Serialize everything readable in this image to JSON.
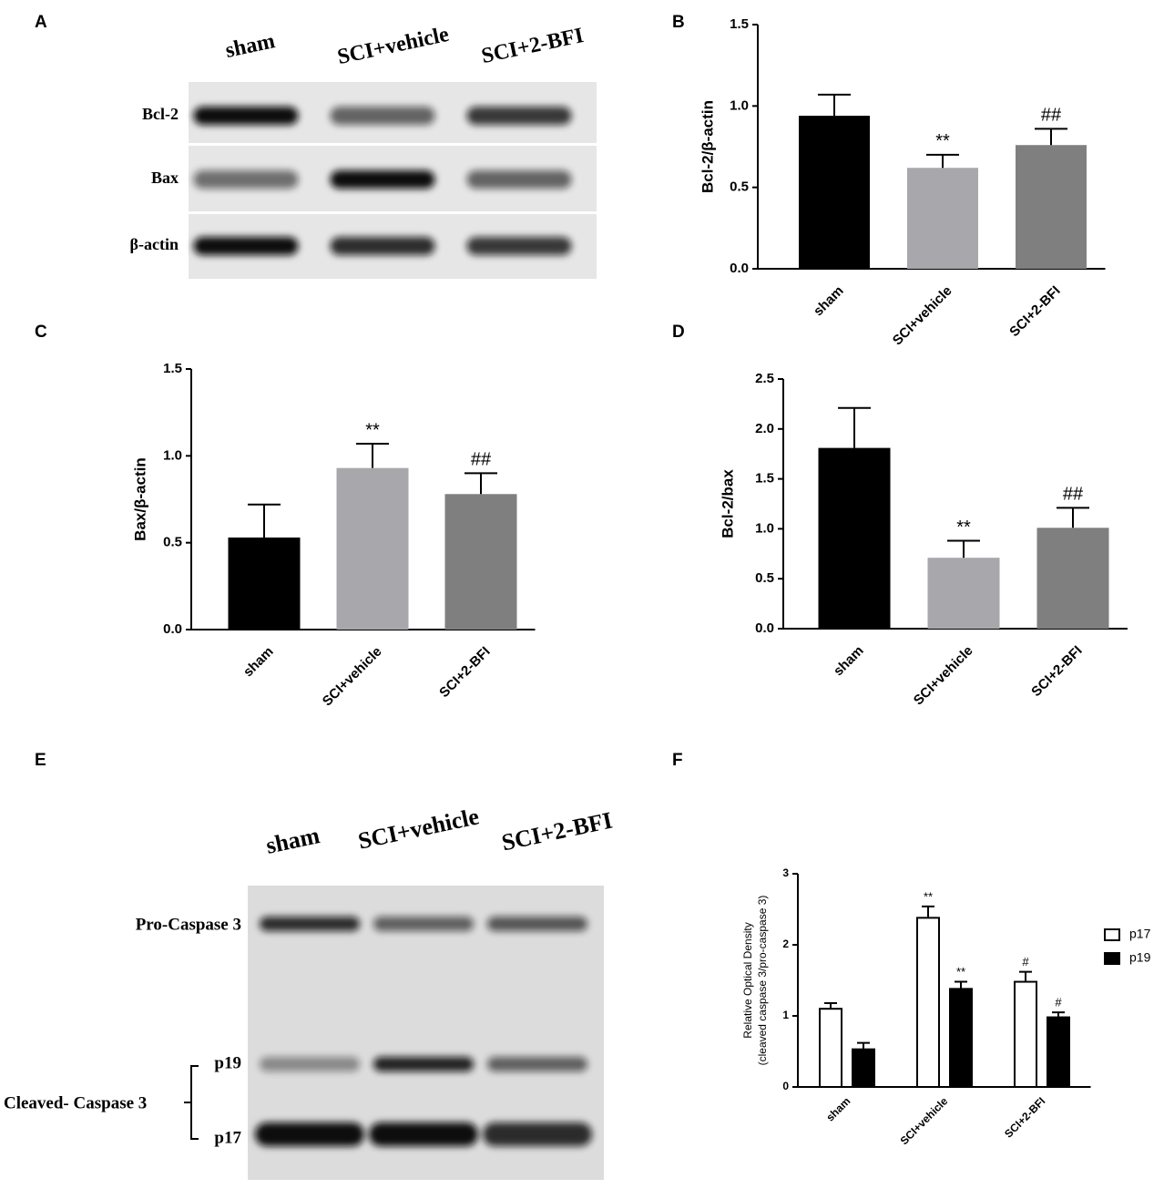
{
  "blots": [
    {
      "panel": "A",
      "lanes": [
        "sham",
        "SCI+vehicle",
        "SCI+2-BFI"
      ],
      "rows": [
        "Bcl-2",
        "Bax",
        "β-actin"
      ]
    },
    {
      "panel": "E",
      "lanes": [
        "sham",
        "SCI+vehicle",
        "SCI+2-BFI"
      ],
      "labels": [
        "Pro-Caspase 3",
        "p19",
        "Cleaved- Caspase 3",
        "p17"
      ]
    }
  ],
  "chart_data": [
    {
      "type": "bar",
      "panel": "B",
      "ylabel": "Bcl-2/β-actin",
      "categories": [
        "sham",
        "SCI+vehicle",
        "SCI+2-BFI"
      ],
      "values": [
        0.94,
        0.62,
        0.76
      ],
      "errors": [
        0.13,
        0.08,
        0.1
      ],
      "annotations": [
        null,
        "**",
        "##"
      ],
      "colors": [
        "#000000",
        "#a7a7ac",
        "#7f7f7f"
      ],
      "ylim": [
        0,
        1.5
      ],
      "yticks": [
        {
          "value": 0,
          "label": "0.0"
        },
        0.5,
        {
          "value": 1,
          "label": "1.0"
        },
        1.5
      ]
    },
    {
      "type": "bar",
      "panel": "C",
      "ylabel": "Bax/β-actin",
      "categories": [
        "sham",
        "SCI+vehicle",
        "SCI+2-BFI"
      ],
      "values": [
        0.53,
        0.93,
        0.78
      ],
      "errors": [
        0.19,
        0.14,
        0.12
      ],
      "annotations": [
        null,
        "**",
        "##"
      ],
      "colors": [
        "#000000",
        "#a7a7ac",
        "#7f7f7f"
      ],
      "ylim": [
        0,
        1.5
      ],
      "yticks": [
        {
          "value": 0,
          "label": "0.0"
        },
        0.5,
        {
          "value": 1,
          "label": "1.0"
        },
        1.5
      ]
    },
    {
      "type": "bar",
      "panel": "D",
      "ylabel": "Bcl-2/bax",
      "categories": [
        "sham",
        "SCI+vehicle",
        "SCI+2-BFI"
      ],
      "values": [
        1.81,
        0.71,
        1.01
      ],
      "errors": [
        0.4,
        0.17,
        0.2
      ],
      "annotations": [
        null,
        "**",
        "##"
      ],
      "colors": [
        "#000000",
        "#a7a7ac",
        "#7f7f7f"
      ],
      "ylim": [
        0,
        2.5
      ],
      "yticks": [
        {
          "value": 0,
          "label": "0.0"
        },
        0.5,
        {
          "value": 1,
          "label": "1.0"
        },
        1.5,
        {
          "value": 2,
          "label": "2.0"
        },
        2.5
      ]
    },
    {
      "type": "grouped-bar",
      "panel": "F",
      "ylabel": [
        "Relative Optical Density",
        "(cleaved caspase 3/pro-caspase 3)"
      ],
      "categories": [
        "sham",
        "SCI+vehicle",
        "SCI+2-BFI"
      ],
      "edgecolor": "#000000",
      "legend": "right",
      "series": [
        {
          "name": "p17",
          "color": "#ffffff",
          "values": [
            1.1,
            2.38,
            1.48
          ],
          "errors": [
            0.08,
            0.16,
            0.14
          ],
          "annotations": [
            null,
            "**",
            "#"
          ]
        },
        {
          "name": "p19",
          "color": "#000000",
          "values": [
            0.53,
            1.38,
            0.98
          ],
          "errors": [
            0.09,
            0.1,
            0.07
          ],
          "annotations": [
            null,
            "**",
            "#"
          ]
        }
      ],
      "ylim": [
        0,
        3
      ],
      "yticks": [
        0,
        1,
        2,
        3
      ]
    }
  ]
}
